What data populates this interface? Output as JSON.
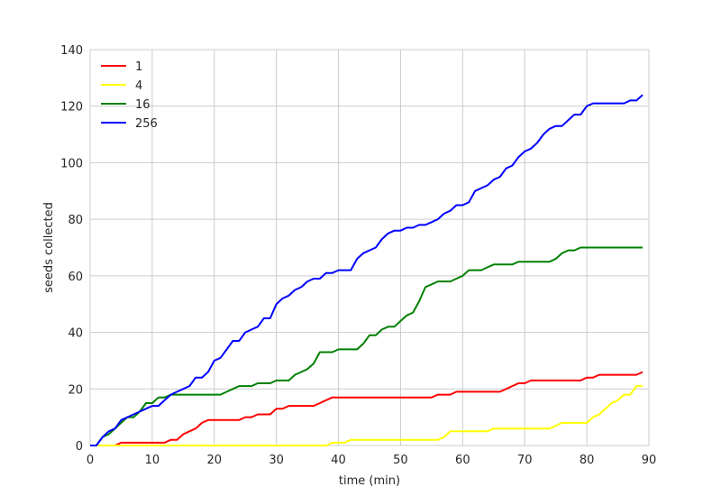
{
  "chart_data": {
    "type": "line",
    "xlabel": "time (min)",
    "ylabel": "seeds collected",
    "xlim": [
      0,
      90
    ],
    "ylim": [
      0,
      140
    ],
    "xticks": [
      0,
      10,
      20,
      30,
      40,
      50,
      60,
      70,
      80,
      90
    ],
    "yticks": [
      0,
      20,
      40,
      60,
      80,
      100,
      120,
      140
    ],
    "grid": true,
    "legend_position": "top-left",
    "series": [
      {
        "name": "1",
        "color": "#ff0000",
        "points": [
          [
            0,
            0
          ],
          [
            4,
            0
          ],
          [
            5,
            1
          ],
          [
            6,
            1
          ],
          [
            11,
            1
          ],
          [
            12,
            1
          ],
          [
            13,
            2
          ],
          [
            14,
            2
          ],
          [
            15,
            4
          ],
          [
            16,
            5
          ],
          [
            17,
            6
          ],
          [
            18,
            8
          ],
          [
            19,
            9
          ],
          [
            24,
            9
          ],
          [
            25,
            10
          ],
          [
            26,
            10
          ],
          [
            27,
            11
          ],
          [
            29,
            11
          ],
          [
            30,
            13
          ],
          [
            31,
            13
          ],
          [
            32,
            14
          ],
          [
            36,
            14
          ],
          [
            37,
            15
          ],
          [
            38,
            16
          ],
          [
            39,
            17
          ],
          [
            55,
            17
          ],
          [
            56,
            18
          ],
          [
            58,
            18
          ],
          [
            59,
            19
          ],
          [
            66,
            19
          ],
          [
            67,
            20
          ],
          [
            68,
            21
          ],
          [
            69,
            22
          ],
          [
            70,
            22
          ],
          [
            71,
            23
          ],
          [
            79,
            23
          ],
          [
            80,
            24
          ],
          [
            81,
            24
          ],
          [
            82,
            25
          ],
          [
            88,
            25
          ],
          [
            89,
            26
          ]
        ]
      },
      {
        "name": "4",
        "color": "#ffff00",
        "points": [
          [
            0,
            0
          ],
          [
            38,
            0
          ],
          [
            39,
            1
          ],
          [
            40,
            1
          ],
          [
            41,
            1
          ],
          [
            42,
            2
          ],
          [
            56,
            2
          ],
          [
            57,
            3
          ],
          [
            58,
            5
          ],
          [
            64,
            5
          ],
          [
            65,
            6
          ],
          [
            74,
            6
          ],
          [
            75,
            7
          ],
          [
            76,
            8
          ],
          [
            80,
            8
          ],
          [
            81,
            10
          ],
          [
            82,
            11
          ],
          [
            83,
            13
          ],
          [
            84,
            15
          ],
          [
            85,
            16
          ],
          [
            86,
            18
          ],
          [
            87,
            18
          ],
          [
            88,
            21
          ],
          [
            89,
            21
          ]
        ]
      },
      {
        "name": "16",
        "color": "#008000",
        "points": [
          [
            0,
            0
          ],
          [
            1,
            0
          ],
          [
            2,
            3
          ],
          [
            3,
            4
          ],
          [
            4,
            6
          ],
          [
            5,
            8
          ],
          [
            6,
            10
          ],
          [
            7,
            10
          ],
          [
            8,
            12
          ],
          [
            9,
            15
          ],
          [
            10,
            15
          ],
          [
            11,
            17
          ],
          [
            12,
            17
          ],
          [
            13,
            18
          ],
          [
            21,
            18
          ],
          [
            22,
            19
          ],
          [
            23,
            20
          ],
          [
            24,
            21
          ],
          [
            26,
            21
          ],
          [
            27,
            22
          ],
          [
            29,
            22
          ],
          [
            30,
            23
          ],
          [
            32,
            23
          ],
          [
            33,
            25
          ],
          [
            34,
            26
          ],
          [
            35,
            27
          ],
          [
            36,
            29
          ],
          [
            37,
            33
          ],
          [
            39,
            33
          ],
          [
            40,
            34
          ],
          [
            43,
            34
          ],
          [
            44,
            36
          ],
          [
            45,
            39
          ],
          [
            46,
            39
          ],
          [
            47,
            41
          ],
          [
            48,
            42
          ],
          [
            49,
            42
          ],
          [
            50,
            44
          ],
          [
            51,
            46
          ],
          [
            52,
            47
          ],
          [
            53,
            51
          ],
          [
            54,
            56
          ],
          [
            55,
            57
          ],
          [
            56,
            58
          ],
          [
            58,
            58
          ],
          [
            59,
            59
          ],
          [
            60,
            60
          ],
          [
            61,
            62
          ],
          [
            63,
            62
          ],
          [
            64,
            63
          ],
          [
            65,
            64
          ],
          [
            68,
            64
          ],
          [
            69,
            65
          ],
          [
            74,
            65
          ],
          [
            75,
            66
          ],
          [
            76,
            68
          ],
          [
            77,
            69
          ],
          [
            78,
            69
          ],
          [
            79,
            70
          ],
          [
            89,
            70
          ]
        ]
      },
      {
        "name": "256",
        "color": "#0000ff",
        "points": [
          [
            0,
            0
          ],
          [
            1,
            0
          ],
          [
            2,
            3
          ],
          [
            3,
            5
          ],
          [
            4,
            6
          ],
          [
            5,
            9
          ],
          [
            6,
            10
          ],
          [
            7,
            11
          ],
          [
            8,
            12
          ],
          [
            9,
            13
          ],
          [
            10,
            14
          ],
          [
            11,
            14
          ],
          [
            12,
            16
          ],
          [
            13,
            18
          ],
          [
            14,
            19
          ],
          [
            15,
            20
          ],
          [
            16,
            21
          ],
          [
            17,
            24
          ],
          [
            18,
            24
          ],
          [
            19,
            26
          ],
          [
            20,
            30
          ],
          [
            21,
            31
          ],
          [
            22,
            34
          ],
          [
            23,
            37
          ],
          [
            24,
            37
          ],
          [
            25,
            40
          ],
          [
            26,
            41
          ],
          [
            27,
            42
          ],
          [
            28,
            45
          ],
          [
            29,
            45
          ],
          [
            30,
            50
          ],
          [
            31,
            52
          ],
          [
            32,
            53
          ],
          [
            33,
            55
          ],
          [
            34,
            56
          ],
          [
            35,
            58
          ],
          [
            36,
            59
          ],
          [
            37,
            59
          ],
          [
            38,
            61
          ],
          [
            39,
            61
          ],
          [
            40,
            62
          ],
          [
            42,
            62
          ],
          [
            43,
            66
          ],
          [
            44,
            68
          ],
          [
            45,
            69
          ],
          [
            46,
            70
          ],
          [
            47,
            73
          ],
          [
            48,
            75
          ],
          [
            49,
            76
          ],
          [
            50,
            76
          ],
          [
            51,
            77
          ],
          [
            52,
            77
          ],
          [
            53,
            78
          ],
          [
            54,
            78
          ],
          [
            55,
            79
          ],
          [
            56,
            80
          ],
          [
            57,
            82
          ],
          [
            58,
            83
          ],
          [
            59,
            85
          ],
          [
            60,
            85
          ],
          [
            61,
            86
          ],
          [
            62,
            90
          ],
          [
            63,
            91
          ],
          [
            64,
            92
          ],
          [
            65,
            94
          ],
          [
            66,
            95
          ],
          [
            67,
            98
          ],
          [
            68,
            99
          ],
          [
            69,
            102
          ],
          [
            70,
            104
          ],
          [
            71,
            105
          ],
          [
            72,
            107
          ],
          [
            73,
            110
          ],
          [
            74,
            112
          ],
          [
            75,
            113
          ],
          [
            76,
            113
          ],
          [
            77,
            115
          ],
          [
            78,
            117
          ],
          [
            79,
            117
          ],
          [
            80,
            120
          ],
          [
            81,
            121
          ],
          [
            86,
            121
          ],
          [
            87,
            122
          ],
          [
            88,
            122
          ],
          [
            89,
            124
          ]
        ]
      }
    ]
  }
}
